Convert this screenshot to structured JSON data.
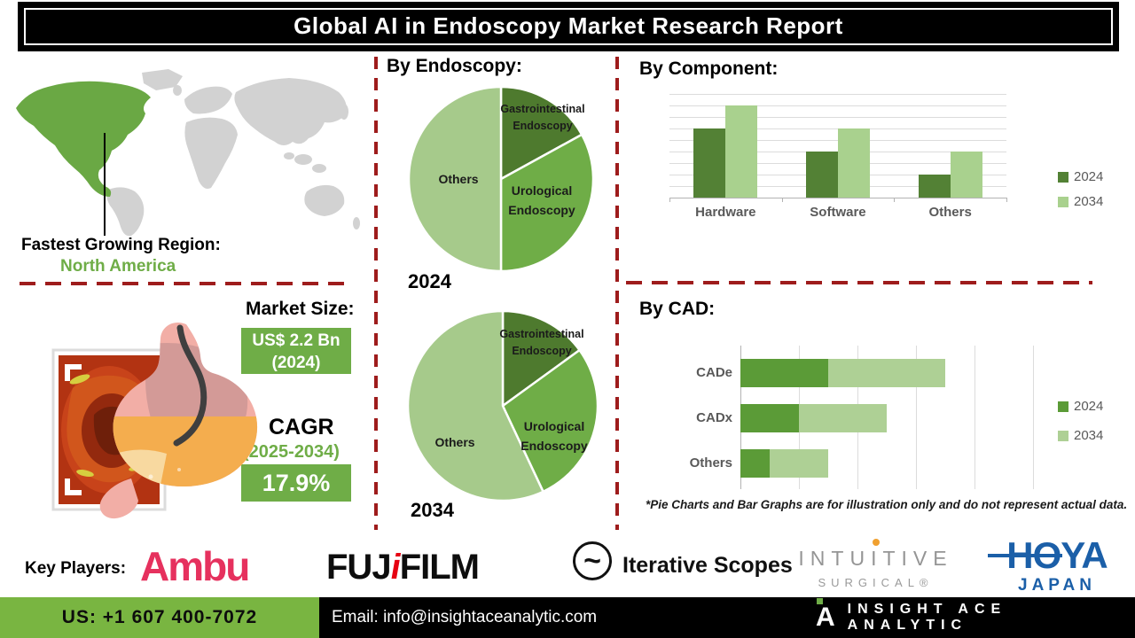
{
  "header": {
    "title": "Global AI in Endoscopy Market Research Report"
  },
  "map": {
    "region_heading": "Fastest Growing Region:",
    "region_value": "North America",
    "highlight_color": "#6aa844",
    "base_color": "#d2d2d2"
  },
  "market_size": {
    "heading": "Market Size:",
    "value_line1": "US$ 2.2 Bn",
    "value_line2": "(2024)",
    "cagr_label": "CAGR",
    "cagr_period": "(2025-2034)",
    "cagr_value": "17.9%",
    "box_color": "#6fad47"
  },
  "sections": {
    "endoscopy_heading": "By Endoscopy:",
    "component_heading": "By Component:",
    "cad_heading": "By CAD:"
  },
  "disclaimer": "*Pie Charts and Bar Graphs are for illustration only and do not represent actual data.",
  "chart_data": [
    {
      "type": "pie",
      "title": "By Endoscopy:",
      "year_label": "2024",
      "slices": [
        {
          "label": "Gastrointestinal Endoscopy",
          "pct": 17,
          "color": "#4e7a2e"
        },
        {
          "label": "Urological Endoscopy",
          "pct": 33,
          "color": "#6fad47"
        },
        {
          "label": "Others",
          "pct": 50,
          "color": "#a6ca8b"
        }
      ],
      "note": "illustration only"
    },
    {
      "type": "pie",
      "title": "By Endoscopy:",
      "year_label": "2034",
      "slices": [
        {
          "label": "Gastrointestinal Endoscopy",
          "pct": 15,
          "color": "#4e7a2e"
        },
        {
          "label": "Urological Endoscopy",
          "pct": 28,
          "color": "#6fad47"
        },
        {
          "label": "Others",
          "pct": 57,
          "color": "#a6ca8b"
        }
      ],
      "note": "illustration only"
    },
    {
      "type": "bar",
      "orientation": "vertical",
      "title": "By Component:",
      "categories": [
        "Hardware",
        "Software",
        "Others"
      ],
      "series": [
        {
          "name": "2024",
          "color": "#538135",
          "values": [
            6,
            4,
            2
          ]
        },
        {
          "name": "2034",
          "color": "#a9d18e",
          "values": [
            8,
            6,
            4
          ]
        }
      ],
      "ylim": [
        0,
        9
      ],
      "grid": true,
      "legend_position": "right",
      "note": "illustration only"
    },
    {
      "type": "bar",
      "orientation": "horizontal",
      "stacked": true,
      "title": "By CAD:",
      "categories": [
        "CADe",
        "CADx",
        "Others"
      ],
      "series": [
        {
          "name": "2024",
          "color": "#5b9b37",
          "values": [
            1.5,
            1,
            0.5
          ]
        },
        {
          "name": "2034",
          "color": "#aed095",
          "values": [
            2,
            1.5,
            1
          ]
        }
      ],
      "xlim": [
        0,
        5
      ],
      "grid": true,
      "legend_position": "right",
      "note": "illustration only"
    }
  ],
  "key_players": {
    "label": "Key Players:",
    "logos": {
      "ambu": {
        "text": "Ambu",
        "color": "#e6315e"
      },
      "fujifilm": {
        "pre": "FUJ",
        "accent": "i",
        "post": "FILM",
        "accent_color": "#e60012"
      },
      "iterative": {
        "icon": "~",
        "text": "Iterative Scopes"
      },
      "intuitive": {
        "line1_pre": "INTU",
        "line1_dot": "I",
        "line1_post": "TIVE",
        "line2": "SURGICAL®"
      },
      "hoya": {
        "line1": "HOYA",
        "line2": "JAPAN",
        "color": "#1b5fa8"
      }
    }
  },
  "footer": {
    "phone": "US: +1 607 400-7072",
    "email": "Email: info@insightaceanalytic.com",
    "brand": "INSIGHT ACE ANALYTIC",
    "brand_mark": "A",
    "green": "#79b541"
  }
}
